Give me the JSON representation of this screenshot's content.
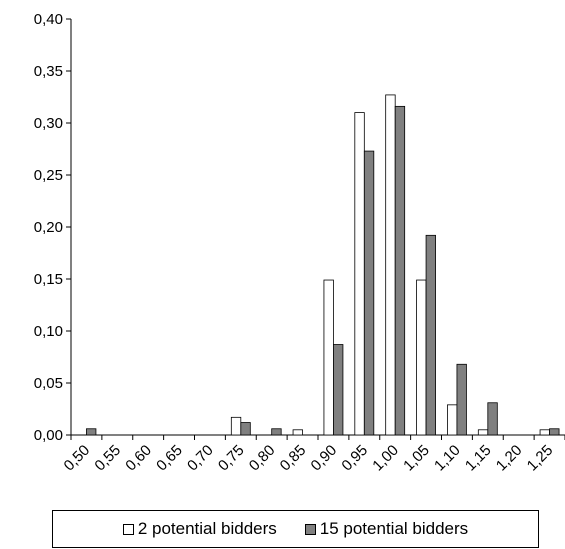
{
  "chart_data": {
    "type": "bar",
    "categories": [
      "0,50",
      "0,55",
      "0,60",
      "0,65",
      "0,70",
      "0,75",
      "0,80",
      "0,85",
      "0,90",
      "0,95",
      "1,00",
      "1,05",
      "1,10",
      "1,15",
      "1,20",
      "1,25"
    ],
    "series": [
      {
        "name": "2 potential bidders",
        "color": "#ffffff",
        "values": [
          0,
          0,
          0,
          0,
          0,
          0.017,
          0,
          0.005,
          0.149,
          0.31,
          0.327,
          0.149,
          0.029,
          0.005,
          0,
          0.005
        ]
      },
      {
        "name": "15 potential bidders",
        "color": "#808080",
        "values": [
          0.006,
          0,
          0,
          0,
          0,
          0.012,
          0.006,
          0,
          0.087,
          0.273,
          0.316,
          0.192,
          0.068,
          0.031,
          0,
          0.006
        ]
      }
    ],
    "yticks": [
      "0,00",
      "0,05",
      "0,10",
      "0,15",
      "0,20",
      "0,25",
      "0,30",
      "0,35",
      "0,40"
    ],
    "ylim": [
      0,
      0.4
    ],
    "grid": false,
    "legend_position": "bottom"
  }
}
